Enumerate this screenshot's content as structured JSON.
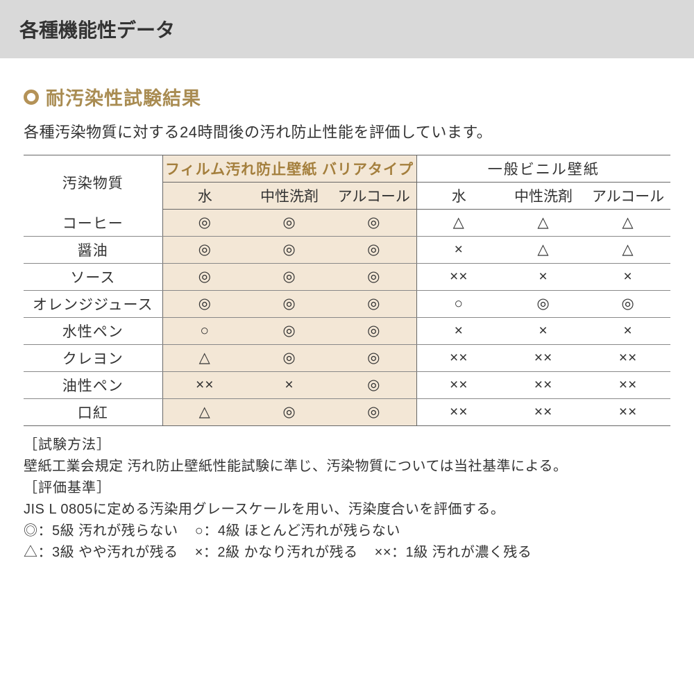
{
  "page": {
    "title": "各種機能性データ"
  },
  "section": {
    "title": "耐汚染性試験結果",
    "description": "各種汚染物質に対する24時間後の汚れ防止性能を評価しています。"
  },
  "table": {
    "rowHeader": "汚染物質",
    "groupA": "フィルム汚れ防止壁紙 バリアタイプ",
    "groupB": "一般ビニル壁紙",
    "subcolsA": [
      "水",
      "中性洗剤",
      "アルコール"
    ],
    "subcolsB": [
      "水",
      "中性洗剤",
      "アルコール"
    ],
    "rows": [
      {
        "label": "コーヒー",
        "a": [
          "◎",
          "◎",
          "◎"
        ],
        "b": [
          "△",
          "△",
          "△"
        ]
      },
      {
        "label": "醤油",
        "a": [
          "◎",
          "◎",
          "◎"
        ],
        "b": [
          "×",
          "△",
          "△"
        ]
      },
      {
        "label": "ソース",
        "a": [
          "◎",
          "◎",
          "◎"
        ],
        "b": [
          "××",
          "×",
          "×"
        ]
      },
      {
        "label": "オレンジジュース",
        "a": [
          "◎",
          "◎",
          "◎"
        ],
        "b": [
          "○",
          "◎",
          "◎"
        ]
      },
      {
        "label": "水性ペン",
        "a": [
          "○",
          "◎",
          "◎"
        ],
        "b": [
          "×",
          "×",
          "×"
        ]
      },
      {
        "label": "クレヨン",
        "a": [
          "△",
          "◎",
          "◎"
        ],
        "b": [
          "××",
          "××",
          "××"
        ]
      },
      {
        "label": "油性ペン",
        "a": [
          "××",
          "×",
          "◎"
        ],
        "b": [
          "××",
          "××",
          "××"
        ]
      },
      {
        "label": "口紅",
        "a": [
          "△",
          "◎",
          "◎"
        ],
        "b": [
          "××",
          "××",
          "××"
        ]
      }
    ]
  },
  "notes": {
    "methodLabel": "［試験方法］",
    "methodText": "壁紙工業会規定 汚れ防止壁紙性能試験に準じ、汚染物質については当社基準による。",
    "criteriaLabel": "［評価基準］",
    "criteriaText": "JIS L 0805に定める汚染用グレースケールを用い、汚染度合いを評価する。",
    "legend1a": "◎：5級 汚れが残らない",
    "legend1b": "○：4級 ほとんど汚れが残らない",
    "legend2a": "△：3級 やや汚れが残る",
    "legend2b": "×：2級 かなり汚れが残る",
    "legend2c": "××：1級 汚れが濃く残る"
  },
  "style": {
    "accentColor": "#b49257",
    "titleBarBg": "#d9d9d9",
    "highlightBg": "#f3e7d6",
    "borderColor": "#666666"
  }
}
